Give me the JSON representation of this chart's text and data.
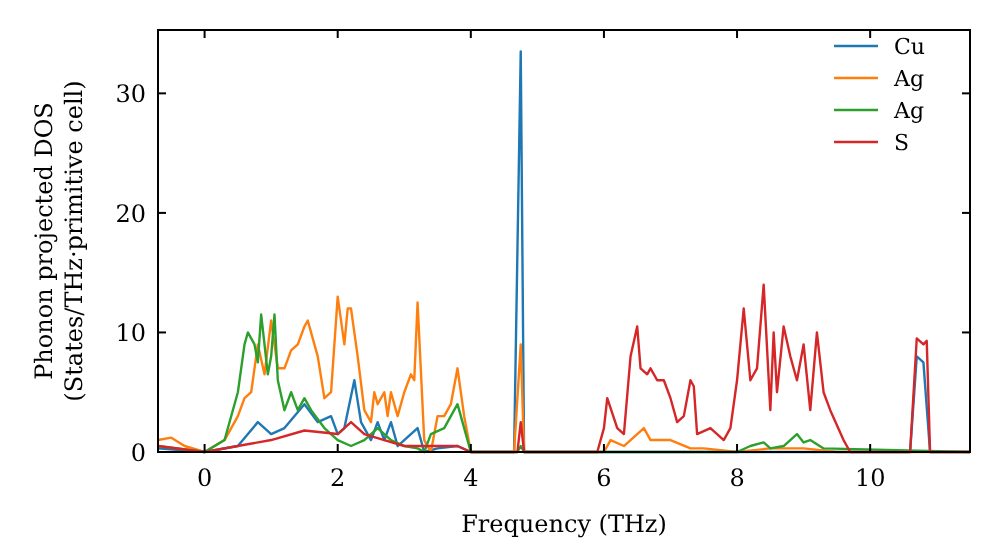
{
  "chart_data": {
    "type": "line",
    "xlabel": "Frequency (THz)",
    "ylabel": "Phonon projected DOS\n(States/THz·primitive cell)",
    "xlim": [
      -0.7,
      11.5
    ],
    "ylim": [
      0,
      35.3
    ],
    "xticks": [
      0,
      2,
      4,
      6,
      8,
      10
    ],
    "yticks": [
      0,
      10,
      20,
      30
    ],
    "grid": false,
    "legend": "top right",
    "line_style": "solid",
    "series": [
      {
        "name": "Cu",
        "color": "#1f77b4",
        "x": [
          -0.7,
          0,
          0.5,
          0.8,
          1.0,
          1.2,
          1.5,
          1.7,
          1.9,
          2.0,
          2.1,
          2.25,
          2.35,
          2.5,
          2.6,
          2.7,
          2.8,
          2.9,
          3.2,
          3.3,
          3.5,
          3.8,
          4.0,
          4.65,
          4.75,
          4.8,
          10.6,
          10.7,
          10.8,
          10.9,
          11.5
        ],
        "values": [
          0.3,
          0,
          0.5,
          2.5,
          1.5,
          2,
          4,
          2.5,
          3,
          1.5,
          2,
          6,
          2.5,
          1,
          2.5,
          1,
          2.5,
          0.5,
          2,
          0,
          0.3,
          0.5,
          0,
          0,
          33.5,
          0,
          0,
          8,
          7.5,
          0,
          0
        ]
      },
      {
        "name": "Ag",
        "color": "#ff7f0e",
        "x": [
          -0.7,
          -0.5,
          -0.3,
          0,
          0.3,
          0.5,
          0.6,
          0.7,
          0.8,
          0.9,
          1.0,
          1.1,
          1.2,
          1.3,
          1.4,
          1.5,
          1.55,
          1.7,
          1.8,
          1.9,
          2.0,
          2.1,
          2.15,
          2.2,
          2.3,
          2.4,
          2.5,
          2.55,
          2.6,
          2.7,
          2.75,
          2.8,
          2.9,
          3.0,
          3.1,
          3.15,
          3.2,
          3.3,
          3.4,
          3.5,
          3.6,
          3.7,
          3.8,
          3.9,
          4.0,
          4.65,
          4.75,
          4.8,
          6.0,
          6.1,
          6.3,
          6.5,
          6.6,
          6.7,
          7.0,
          7.3,
          7.5,
          8.0,
          8.5,
          9.0,
          9.5,
          11.5
        ],
        "values": [
          1,
          1.2,
          0.5,
          0,
          1,
          3,
          4.5,
          5,
          9,
          6.5,
          11,
          7,
          7,
          8.5,
          9,
          10.5,
          11,
          8,
          4.5,
          5,
          13,
          9,
          12,
          12,
          8,
          3.5,
          2.5,
          5,
          4,
          5,
          3,
          5,
          3,
          5,
          6.5,
          6,
          12.5,
          1,
          0,
          3,
          3,
          4,
          7,
          3,
          0,
          0,
          9,
          0,
          0,
          1,
          0.5,
          1.5,
          2,
          1,
          1,
          0.3,
          0.3,
          0,
          0.3,
          0.3,
          0,
          0
        ]
      },
      {
        "name": "Ag",
        "color": "#2ca02c",
        "x": [
          -0.7,
          0,
          0.3,
          0.5,
          0.6,
          0.65,
          0.75,
          0.8,
          0.85,
          0.9,
          0.95,
          1.0,
          1.05,
          1.1,
          1.2,
          1.3,
          1.4,
          1.5,
          1.6,
          1.8,
          2.0,
          2.2,
          2.4,
          2.6,
          2.8,
          3.0,
          3.2,
          3.3,
          3.4,
          3.6,
          3.8,
          3.9,
          4.0,
          4.7,
          4.75,
          4.8,
          8.0,
          8.2,
          8.4,
          8.5,
          8.7,
          8.9,
          9.0,
          9.1,
          9.3,
          11.5
        ],
        "values": [
          0.5,
          0,
          1,
          5,
          9,
          10,
          9,
          7.5,
          11.5,
          9,
          6.5,
          8,
          11.5,
          6,
          3.5,
          5,
          3.5,
          4.5,
          3.5,
          2,
          1,
          0.5,
          1,
          2,
          1,
          0.5,
          0.3,
          0,
          1.5,
          2,
          4,
          2,
          0,
          0,
          0.5,
          0,
          0,
          0.5,
          0.8,
          0.3,
          0.5,
          1.5,
          0.8,
          1,
          0.3,
          0
        ]
      },
      {
        "name": "S",
        "color": "#d62728",
        "x": [
          -0.7,
          0,
          0.5,
          1.0,
          1.5,
          2.0,
          2.2,
          2.4,
          2.7,
          3.0,
          3.5,
          3.8,
          4.0,
          4.7,
          4.75,
          4.8,
          5.9,
          6.0,
          6.05,
          6.2,
          6.3,
          6.4,
          6.5,
          6.55,
          6.65,
          6.7,
          6.8,
          6.9,
          7.0,
          7.1,
          7.2,
          7.3,
          7.35,
          7.4,
          7.6,
          7.8,
          7.9,
          8.0,
          8.1,
          8.2,
          8.3,
          8.4,
          8.5,
          8.55,
          8.6,
          8.7,
          8.8,
          8.9,
          9.0,
          9.1,
          9.2,
          9.3,
          9.4,
          9.6,
          9.7,
          10.6,
          10.7,
          10.8,
          10.85,
          10.9,
          11.5
        ],
        "values": [
          0.5,
          0,
          0.5,
          1,
          1.8,
          1.5,
          2.5,
          1.5,
          1,
          0.5,
          0.5,
          0.5,
          0,
          0,
          2.5,
          0,
          0,
          2,
          4.5,
          2,
          1.5,
          8,
          10.5,
          7,
          6.5,
          7,
          6,
          6,
          4.5,
          2.5,
          3,
          6,
          5.5,
          1.5,
          2,
          1,
          2,
          6,
          12,
          6,
          7,
          14,
          3.5,
          10,
          5,
          10.5,
          8,
          6,
          9,
          3.5,
          10,
          5,
          3.5,
          1,
          0,
          0,
          9.5,
          9,
          9.3,
          0,
          0
        ]
      }
    ]
  }
}
